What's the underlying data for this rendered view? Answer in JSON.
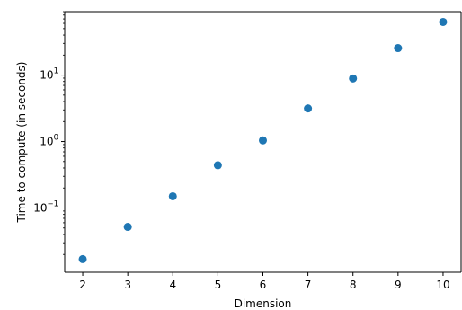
{
  "chart_data": {
    "type": "scatter",
    "title": "",
    "xlabel": "Dimension",
    "ylabel": "Time to compute (in seconds)",
    "y_scale": "log",
    "x_ticks": [
      "2",
      "3",
      "4",
      "5",
      "6",
      "7",
      "8",
      "9",
      "10"
    ],
    "y_ticks": [
      {
        "value": 0.1,
        "base": "10",
        "exponent": "−1"
      },
      {
        "value": 1,
        "base": "10",
        "exponent": "0"
      },
      {
        "value": 10,
        "base": "10",
        "exponent": "1"
      }
    ],
    "xlim": [
      1.6,
      10.4
    ],
    "ylim": [
      0.0108,
      90
    ],
    "grid": false,
    "marker_color": "#1f77b4",
    "points": [
      {
        "x": 2,
        "y": 0.017
      },
      {
        "x": 3,
        "y": 0.052
      },
      {
        "x": 4,
        "y": 0.15
      },
      {
        "x": 5,
        "y": 0.44
      },
      {
        "x": 6,
        "y": 1.04
      },
      {
        "x": 7,
        "y": 3.15
      },
      {
        "x": 8,
        "y": 8.9
      },
      {
        "x": 9,
        "y": 25.5
      },
      {
        "x": 10,
        "y": 63
      }
    ]
  }
}
